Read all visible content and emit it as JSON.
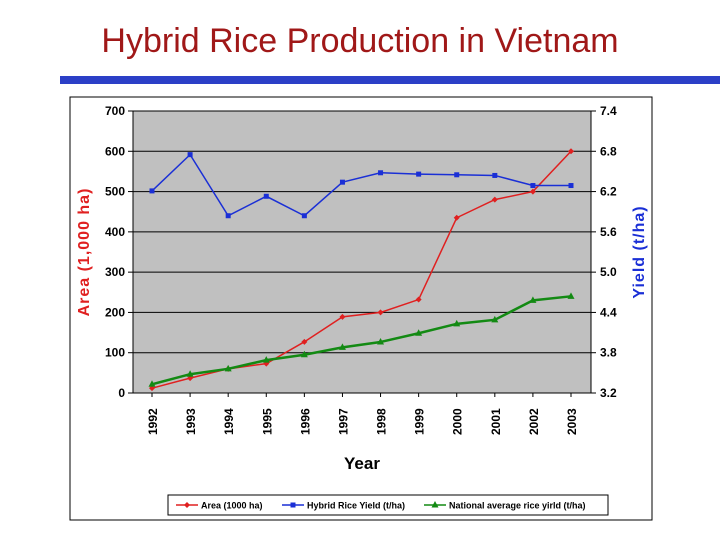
{
  "slide": {
    "title": "Hybrid Rice Production in Vietnam"
  },
  "chart_data": {
    "type": "line",
    "title": "",
    "xlabel": "Year",
    "ylabel_left": "Area (1,000 ha)",
    "ylabel_right": "Yield (t/ha)",
    "x": [
      "1992",
      "1993",
      "1994",
      "1995",
      "1996",
      "1997",
      "1998",
      "1999",
      "2000",
      "2001",
      "2002",
      "2003"
    ],
    "ylim_left": [
      0,
      700
    ],
    "yticks_left": [
      "0",
      "100",
      "200",
      "300",
      "400",
      "500",
      "600",
      "700"
    ],
    "ylim_right": [
      3.2,
      7.4
    ],
    "yticks_right": [
      "3.2",
      "3.8",
      "4.4",
      "5.0",
      "5.6",
      "6.2",
      "6.8",
      "7.4"
    ],
    "grid": true,
    "plot_background": "#c0c0c0",
    "legend_position": "bottom",
    "series": [
      {
        "name": "Area (1000 ha)",
        "axis": "left",
        "color": "#e02020",
        "marker": "diamond",
        "values": [
          12,
          37,
          60,
          73,
          127,
          189,
          200,
          232,
          435,
          480,
          500,
          600
        ]
      },
      {
        "name": "Hybrid Rice Yield (t/ha)",
        "axis": "right",
        "color": "#1a2fd6",
        "marker": "square",
        "values": [
          6.21,
          6.75,
          5.84,
          6.13,
          5.84,
          6.34,
          6.48,
          6.46,
          6.45,
          6.44,
          6.29,
          6.29
        ]
      },
      {
        "name": "National average rice yirld (t/ha)",
        "axis": "right",
        "color": "#138a13",
        "marker": "triangle",
        "values": [
          3.33,
          3.48,
          3.56,
          3.69,
          3.77,
          3.88,
          3.96,
          4.09,
          4.23,
          4.29,
          4.58,
          4.64
        ]
      }
    ]
  }
}
